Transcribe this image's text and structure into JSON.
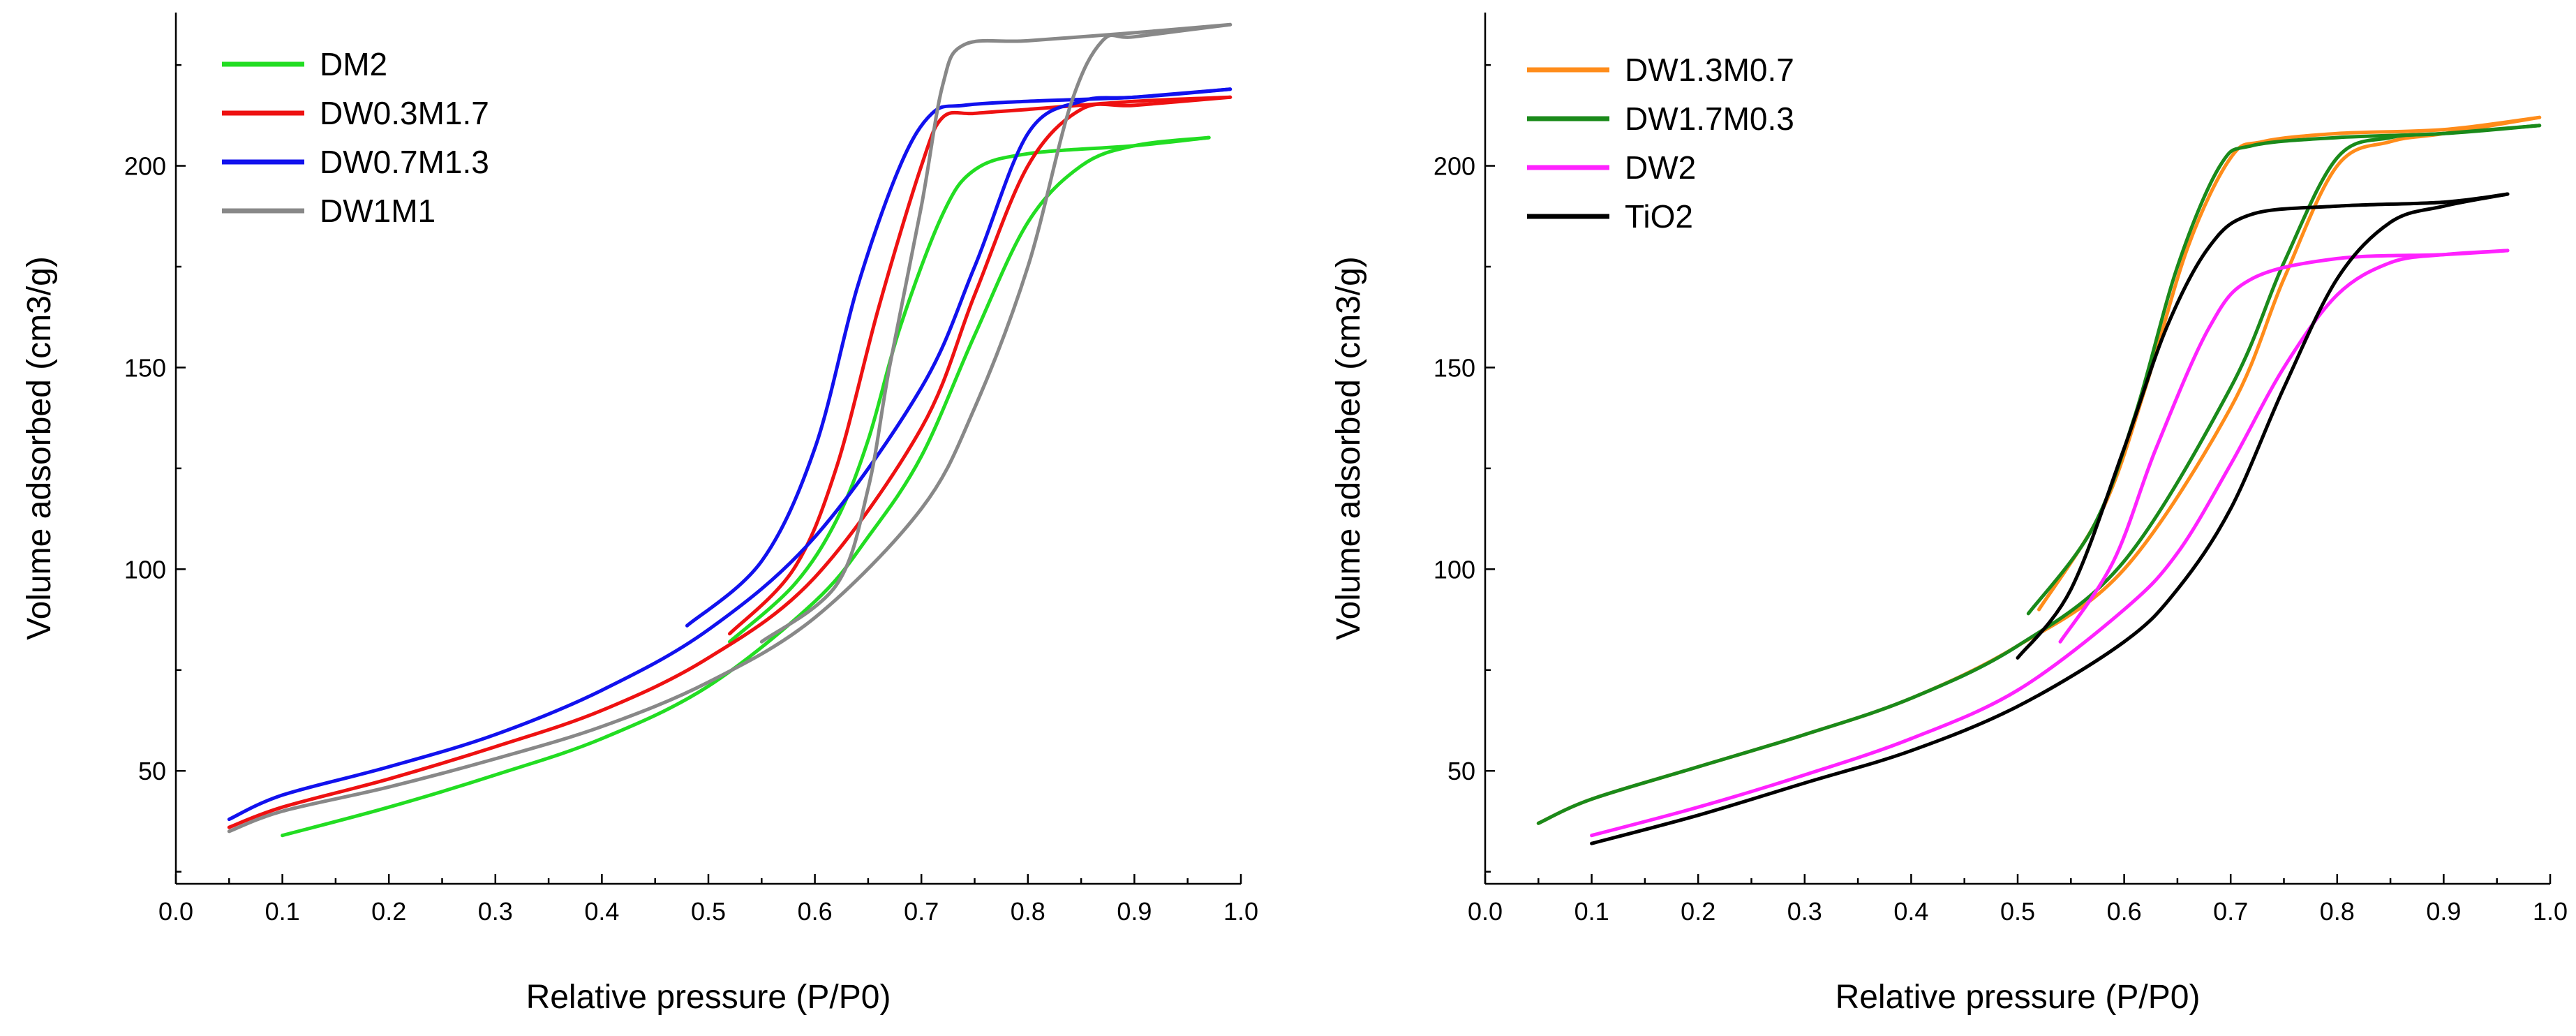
{
  "chart_data": [
    {
      "type": "line",
      "title": "",
      "xlabel": "Relative pressure (P/P0)",
      "ylabel": "Volume adsorbed (cm3/g)",
      "xlim": [
        0.0,
        1.0
      ],
      "ylim": [
        22,
        238
      ],
      "x_ticks": [
        "0.0",
        "0.1",
        "0.2",
        "0.3",
        "0.4",
        "0.5",
        "0.6",
        "0.7",
        "0.8",
        "0.9",
        "1.0"
      ],
      "y_ticks": [
        "50",
        "100",
        "150",
        "200"
      ],
      "grid": false,
      "legend_position": "top-left",
      "series": [
        {
          "name": "DM2",
          "color": "#22dd22",
          "adsorption": [
            [
              0.1,
              34
            ],
            [
              0.2,
              41
            ],
            [
              0.3,
              49
            ],
            [
              0.4,
              58
            ],
            [
              0.5,
              71
            ],
            [
              0.6,
              92
            ],
            [
              0.65,
              108
            ],
            [
              0.7,
              128
            ],
            [
              0.75,
              158
            ],
            [
              0.8,
              186
            ],
            [
              0.85,
              200
            ],
            [
              0.9,
              205
            ],
            [
              0.97,
              207
            ]
          ],
          "desorption": [
            [
              0.97,
              207
            ],
            [
              0.9,
              205
            ],
            [
              0.8,
              203
            ],
            [
              0.75,
              199
            ],
            [
              0.72,
              188
            ],
            [
              0.68,
              160
            ],
            [
              0.65,
              132
            ],
            [
              0.62,
              112
            ],
            [
              0.58,
              96
            ],
            [
              0.52,
              82
            ]
          ]
        },
        {
          "name": "DW0.3M1.7",
          "color": "#ee1111",
          "adsorption": [
            [
              0.05,
              36
            ],
            [
              0.1,
              41
            ],
            [
              0.2,
              48
            ],
            [
              0.3,
              56
            ],
            [
              0.4,
              65
            ],
            [
              0.5,
              78
            ],
            [
              0.6,
              98
            ],
            [
              0.7,
              135
            ],
            [
              0.75,
              168
            ],
            [
              0.8,
              200
            ],
            [
              0.85,
              214
            ],
            [
              0.9,
              215
            ],
            [
              0.99,
              217
            ]
          ],
          "desorption": [
            [
              0.99,
              217
            ],
            [
              0.9,
              216
            ],
            [
              0.8,
              214
            ],
            [
              0.75,
              213
            ],
            [
              0.72,
              212
            ],
            [
              0.7,
              200
            ],
            [
              0.66,
              165
            ],
            [
              0.62,
              125
            ],
            [
              0.58,
              100
            ],
            [
              0.52,
              84
            ]
          ]
        },
        {
          "name": "DW0.7M1.3",
          "color": "#1111ee",
          "adsorption": [
            [
              0.05,
              38
            ],
            [
              0.1,
              44
            ],
            [
              0.2,
              51
            ],
            [
              0.3,
              59
            ],
            [
              0.4,
              70
            ],
            [
              0.5,
              85
            ],
            [
              0.6,
              108
            ],
            [
              0.7,
              145
            ],
            [
              0.75,
              175
            ],
            [
              0.8,
              208
            ],
            [
              0.85,
              216
            ],
            [
              0.9,
              217
            ],
            [
              0.99,
              219
            ]
          ],
          "desorption": [
            [
              0.99,
              219
            ],
            [
              0.9,
              217
            ],
            [
              0.8,
              216
            ],
            [
              0.74,
              215
            ],
            [
              0.71,
              213
            ],
            [
              0.68,
              200
            ],
            [
              0.64,
              170
            ],
            [
              0.6,
              130
            ],
            [
              0.55,
              102
            ],
            [
              0.48,
              86
            ]
          ]
        },
        {
          "name": "DW1M1",
          "color": "#888888",
          "adsorption": [
            [
              0.05,
              35
            ],
            [
              0.1,
              40
            ],
            [
              0.2,
              46
            ],
            [
              0.3,
              53
            ],
            [
              0.4,
              61
            ],
            [
              0.5,
              72
            ],
            [
              0.6,
              88
            ],
            [
              0.7,
              115
            ],
            [
              0.75,
              140
            ],
            [
              0.8,
              175
            ],
            [
              0.84,
              215
            ],
            [
              0.87,
              231
            ],
            [
              0.9,
              232
            ],
            [
              0.99,
              235
            ]
          ],
          "desorption": [
            [
              0.99,
              235
            ],
            [
              0.9,
              233
            ],
            [
              0.8,
              231
            ],
            [
              0.74,
              230
            ],
            [
              0.72,
              220
            ],
            [
              0.7,
              190
            ],
            [
              0.67,
              150
            ],
            [
              0.65,
              120
            ],
            [
              0.62,
              96
            ],
            [
              0.55,
              82
            ]
          ]
        }
      ]
    },
    {
      "type": "line",
      "title": "",
      "xlabel": "Relative pressure (P/P0)",
      "ylabel": "Volume adsorbed (cm3/g)",
      "xlim": [
        0.0,
        1.0
      ],
      "ylim": [
        22,
        238
      ],
      "x_ticks": [
        "0.0",
        "0.1",
        "0.2",
        "0.3",
        "0.4",
        "0.5",
        "0.6",
        "0.7",
        "0.8",
        "0.9",
        "1.0"
      ],
      "y_ticks": [
        "50",
        "100",
        "150",
        "200"
      ],
      "grid": false,
      "legend_position": "top-left",
      "series": [
        {
          "name": "DW1.3M0.7",
          "color": "#ff8c1a",
          "adsorption": [
            [
              0.05,
              37
            ],
            [
              0.1,
              43
            ],
            [
              0.2,
              51
            ],
            [
              0.3,
              59
            ],
            [
              0.4,
              68
            ],
            [
              0.5,
              81
            ],
            [
              0.6,
              100
            ],
            [
              0.7,
              140
            ],
            [
              0.75,
              172
            ],
            [
              0.8,
              200
            ],
            [
              0.85,
              206
            ],
            [
              0.9,
              208
            ],
            [
              0.99,
              212
            ]
          ],
          "desorption": [
            [
              0.99,
              212
            ],
            [
              0.9,
              209
            ],
            [
              0.8,
              208
            ],
            [
              0.73,
              206
            ],
            [
              0.7,
              202
            ],
            [
              0.66,
              180
            ],
            [
              0.62,
              145
            ],
            [
              0.58,
              115
            ],
            [
              0.52,
              90
            ]
          ]
        },
        {
          "name": "DW1.7M0.3",
          "color": "#1a8a1a",
          "adsorption": [
            [
              0.05,
              37
            ],
            [
              0.1,
              43
            ],
            [
              0.2,
              51
            ],
            [
              0.3,
              59
            ],
            [
              0.4,
              68
            ],
            [
              0.5,
              81
            ],
            [
              0.6,
              102
            ],
            [
              0.7,
              145
            ],
            [
              0.75,
              176
            ],
            [
              0.8,
              202
            ],
            [
              0.85,
              207
            ],
            [
              0.9,
              208
            ],
            [
              0.99,
              210
            ]
          ],
          "desorption": [
            [
              0.99,
              210
            ],
            [
              0.9,
              208
            ],
            [
              0.8,
              207
            ],
            [
              0.72,
              205
            ],
            [
              0.69,
              200
            ],
            [
              0.65,
              175
            ],
            [
              0.61,
              138
            ],
            [
              0.57,
              110
            ],
            [
              0.51,
              89
            ]
          ]
        },
        {
          "name": "DW2",
          "color": "#ff22ff",
          "adsorption": [
            [
              0.1,
              34
            ],
            [
              0.2,
              41
            ],
            [
              0.3,
              49
            ],
            [
              0.4,
              58
            ],
            [
              0.5,
              70
            ],
            [
              0.6,
              90
            ],
            [
              0.65,
              104
            ],
            [
              0.7,
              126
            ],
            [
              0.75,
              150
            ],
            [
              0.8,
              168
            ],
            [
              0.85,
              176
            ],
            [
              0.9,
              178
            ],
            [
              0.96,
              179
            ]
          ],
          "desorption": [
            [
              0.96,
              179
            ],
            [
              0.9,
              178
            ],
            [
              0.8,
              177
            ],
            [
              0.72,
              172
            ],
            [
              0.68,
              160
            ],
            [
              0.63,
              130
            ],
            [
              0.59,
              102
            ],
            [
              0.54,
              82
            ]
          ]
        },
        {
          "name": "TiO2",
          "color": "#000000",
          "adsorption": [
            [
              0.1,
              32
            ],
            [
              0.2,
              39
            ],
            [
              0.3,
              47
            ],
            [
              0.4,
              55
            ],
            [
              0.5,
              66
            ],
            [
              0.6,
              82
            ],
            [
              0.65,
              95
            ],
            [
              0.7,
              115
            ],
            [
              0.75,
              145
            ],
            [
              0.8,
              172
            ],
            [
              0.85,
              186
            ],
            [
              0.9,
              190
            ],
            [
              0.96,
              193
            ]
          ],
          "desorption": [
            [
              0.96,
              193
            ],
            [
              0.9,
              191
            ],
            [
              0.8,
              190
            ],
            [
              0.72,
              188
            ],
            [
              0.68,
              180
            ],
            [
              0.64,
              160
            ],
            [
              0.6,
              130
            ],
            [
              0.55,
              95
            ],
            [
              0.5,
              78
            ]
          ]
        }
      ]
    }
  ]
}
